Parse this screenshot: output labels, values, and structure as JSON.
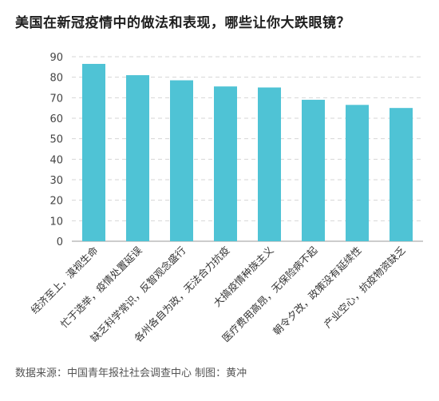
{
  "title": "美国在新冠疫情中的做法和表现，哪些让你大跌眼镜？",
  "source": "数据来源：中国青年报社社会调查中心 制图：黄冲",
  "chart_data": {
    "type": "bar",
    "categories": [
      "经济至上，漠视生命",
      "忙于选举，疫情处置延误",
      "缺乏科学常识，反智观念盛行",
      "各州各自为政，无法合力抗疫",
      "大搞疫情种族主义",
      "医疗费用高昂，无保险病不起",
      "朝令夕改，政策没有延续性",
      "产业空心，抗疫物资缺乏"
    ],
    "values": [
      86.5,
      81.0,
      78.5,
      75.5,
      75.0,
      69.0,
      66.5,
      65.0
    ],
    "ylim": [
      0,
      90
    ],
    "yticks": [
      0,
      10,
      20,
      30,
      40,
      50,
      60,
      70,
      80,
      90
    ],
    "bar_color": "#4fc3d5",
    "grid": true
  }
}
